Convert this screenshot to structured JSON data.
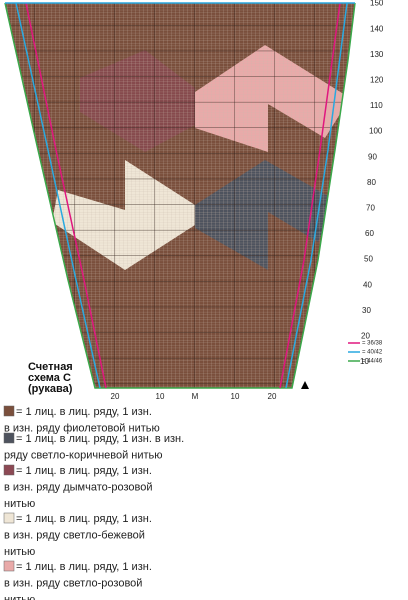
{
  "chart": {
    "row_labels": [
      "10",
      "20",
      "30",
      "40",
      "50",
      "60",
      "70",
      "80",
      "90",
      "100",
      "110",
      "120",
      "130",
      "140",
      "150"
    ],
    "column_labels": [
      "20",
      "10",
      "M",
      "10",
      "20"
    ],
    "title_lines": [
      "Счетная",
      "схема С",
      "(рукава)"
    ],
    "sizes": [
      {
        "label": "= 36/38",
        "color": "#e0177f"
      },
      {
        "label": "= 40/42",
        "color": "#29a9e0"
      },
      {
        "label": "= 44/46",
        "color": "#3aa84a"
      }
    ]
  },
  "legend": [
    {
      "color": "#7a4f3c",
      "lines": [
        "= 1 лиц. в лиц. ряду, 1 изн.",
        "в изн. ряду фиолетовой нитью"
      ]
    },
    {
      "color": "#4e535e",
      "lines": [
        "= 1 лиц. в лиц. ряду, 1 изн. в изн.",
        "ряду светло-коричневой нитью"
      ]
    },
    {
      "color": "#8c4954",
      "lines": [
        "= 1 лиц. в лиц. ряду, 1 изн.",
        "в изн. ряду дымчато-розовой",
        "нитью"
      ]
    },
    {
      "color": "#efe6d6",
      "lines": [
        "= 1 лиц. в лиц. ряду, 1 изн.",
        "в изн. ряду светло-бежевой",
        "нитью"
      ]
    },
    {
      "color": "#e9aaa9",
      "lines": [
        "= 1 лиц. в лиц. ряду, 1 изн.",
        "в изн. ряду светло-розовой",
        "нитью"
      ]
    }
  ]
}
